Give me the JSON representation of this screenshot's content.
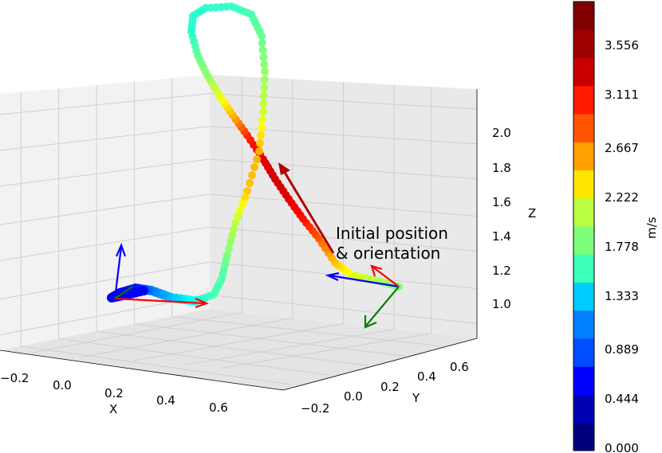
{
  "chart_data": {
    "type": "3d-line",
    "title": "",
    "xlabel": "X",
    "ylabel": "Y",
    "zlabel": "Z",
    "x_ticks": [
      "−0.2",
      "0.0",
      "0.2",
      "0.4",
      "0.6"
    ],
    "y_ticks": [
      "−0.2",
      "0.0",
      "0.2",
      "0.4",
      "0.6"
    ],
    "z_ticks": [
      "1.0",
      "1.2",
      "1.4",
      "1.6",
      "1.8",
      "2.0"
    ],
    "xlim": [
      -0.3,
      0.75
    ],
    "ylim": [
      -0.3,
      0.75
    ],
    "zlim": [
      0.85,
      2.15
    ],
    "grid": true,
    "annotation": [
      "Initial position",
      "& orientation"
    ],
    "colorbar": {
      "label": "m/s",
      "ticks": [
        "0.000",
        "0.444",
        "0.889",
        "1.333",
        "1.778",
        "2.222",
        "2.667",
        "3.111",
        "3.556"
      ],
      "bands": [
        "#00007f",
        "#0000b3",
        "#0000ff",
        "#004cff",
        "#0080ff",
        "#00ccff",
        "#3dffb7",
        "#7dff7a",
        "#b7ff40",
        "#ffe600",
        "#ff9f00",
        "#ff5500",
        "#ff1a00",
        "#c80000",
        "#9c0000",
        "#7f0000"
      ]
    },
    "trajectory_speed_range": [
      0.9,
      3.3
    ]
  }
}
